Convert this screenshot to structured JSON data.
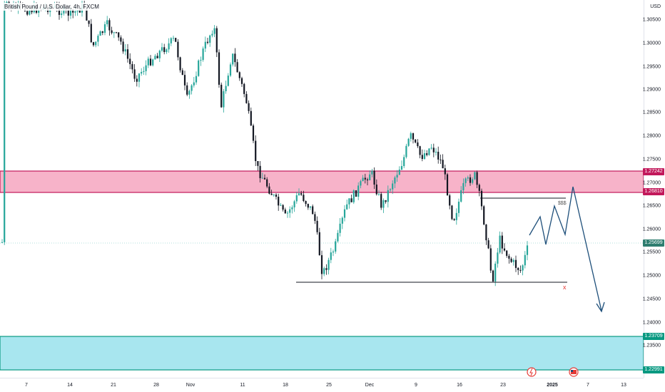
{
  "header": {
    "symbol": "British Pound / U.S. Dollar, 4h, FXCM"
  },
  "price_axis": {
    "currency": "USD",
    "ticks": [
      "1.30500",
      "1.30000",
      "1.29500",
      "1.29000",
      "1.28500",
      "1.28000",
      "1.27500",
      "1.27000",
      "1.26500",
      "1.26000",
      "1.25500",
      "1.25000",
      "1.24500",
      "1.24000",
      "1.23500"
    ]
  },
  "badges": {
    "supply_top": "1.27242",
    "supply_bottom": "1.26810",
    "current": "1.25699",
    "demand_top": "1.23709",
    "demand_bottom": "1.22991"
  },
  "time_axis": {
    "labels": [
      "7",
      "14",
      "21",
      "28",
      "Nov",
      "11",
      "18",
      "25",
      "Dec",
      "9",
      "16",
      "23",
      "2025",
      "7",
      "13"
    ]
  },
  "annotations": {
    "liquidity_marker": "$$$",
    "invalid_marker": "x"
  },
  "colors": {
    "supply_zone_fill": "#f7b3c9",
    "supply_zone_border": "#c2185b",
    "demand_zone_fill": "#a8e6ef",
    "demand_zone_border": "#089981",
    "candle_up": "#26a69a",
    "candle_down": "#131722",
    "projection": "#1e4f7a",
    "current_badge": "#2e7d6f"
  },
  "icons": [
    "lightning-event-icon",
    "us-flag-event-icon"
  ]
}
